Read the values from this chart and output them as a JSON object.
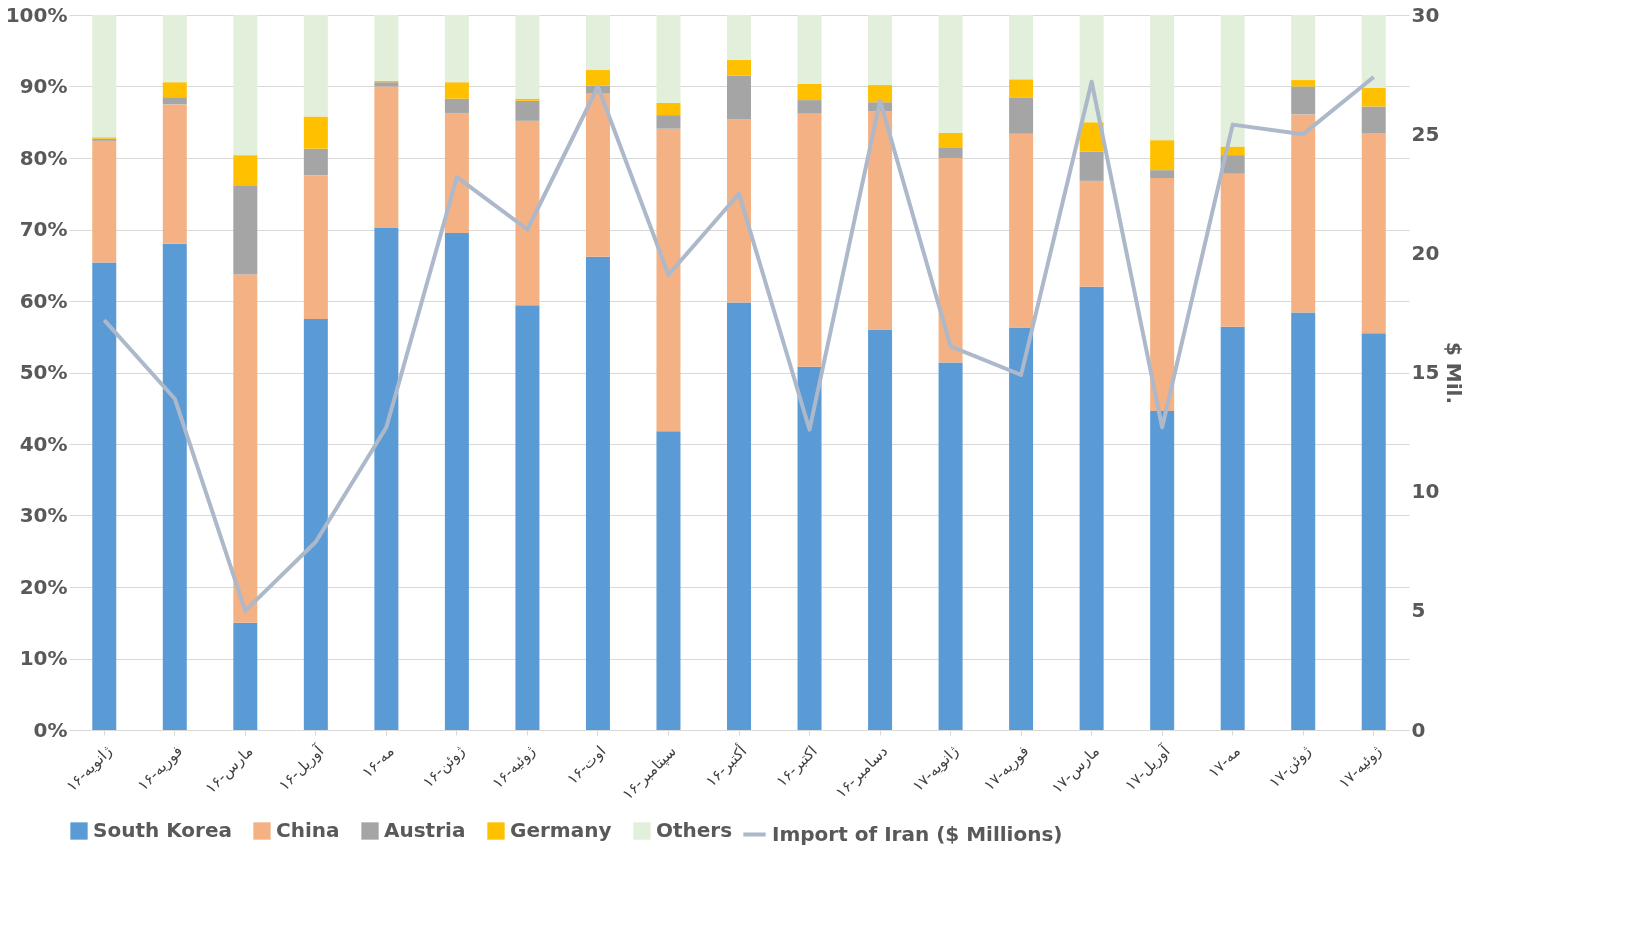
{
  "chart_data": {
    "type": "bar",
    "stacked": true,
    "categories": [
      "ژانویه-۱۶",
      "فوریه-۱۶",
      "مارس-۱۶",
      "آوریل-۱۶",
      "مه-۱۶",
      "ژوئن-۱۶",
      "ژوئیه-۱۶",
      "اوت-۱۶",
      "سپتامبر-۱۶",
      "أکتبر-۱۶",
      "اکتبر-۱۶",
      "دسامبر-۱۶",
      "ژانویه-۱۷",
      "فوریه-۱۷",
      "مارس-۱۷",
      "آوریل-۱۷",
      "مه-۱۷",
      "ژوئن-۱۷",
      "ژوئیه-۱۷"
    ],
    "series": [
      {
        "name": "South Korea",
        "color": "#5b9bd5",
        "values": [
          65.4,
          68,
          15,
          57.5,
          70.2,
          69.5,
          59.4,
          66.2,
          41.8,
          59.8,
          50.8,
          56,
          51.4,
          56.3,
          62,
          44.6,
          56.4,
          58.4,
          55.5
        ]
      },
      {
        "name": "China",
        "color": "#f4b183",
        "values": [
          17.0,
          19.5,
          48.7,
          20.1,
          19.8,
          16.8,
          25.8,
          22.8,
          42.3,
          25.6,
          35.4,
          30.5,
          28.6,
          27.1,
          14.8,
          32.6,
          21.4,
          27.7,
          28
        ]
      },
      {
        "name": "Austria",
        "color": "#a5a5a5",
        "values": [
          0.3,
          1.0,
          12.5,
          3.7,
          0.6,
          2.0,
          2.8,
          1.1,
          1.9,
          6.1,
          1.9,
          1.3,
          1.5,
          5.0,
          4.1,
          1.1,
          2.6,
          3.9,
          3.7
        ]
      },
      {
        "name": "Germany",
        "color": "#ffc000",
        "values": [
          0.2,
          2.1,
          4.2,
          4.5,
          0.2,
          2.3,
          0.3,
          2.2,
          1.7,
          2.2,
          2.3,
          2.4,
          2.0,
          2.6,
          4.1,
          4.2,
          1.2,
          0.9,
          2.6
        ]
      },
      {
        "name": "Others",
        "color": "#e2efda",
        "values": [
          17.1,
          9.4,
          19.6,
          14.2,
          9.2,
          9.4,
          11.7,
          7.7,
          12.3,
          6.3,
          9.6,
          9.8,
          16.5,
          9.0,
          15.0,
          17.5,
          18.4,
          9.1,
          10.2
        ]
      },
      {
        "name": "Import of Iran ($ Millions)",
        "type": "line",
        "axis": "y2",
        "color": "#adb9ca",
        "values": [
          17.2,
          13.9,
          5.0,
          7.9,
          12.7,
          23.2,
          21.0,
          27.0,
          19.1,
          22.5,
          12.6,
          26.4,
          16.1,
          14.9,
          27.2,
          12.7,
          25.4,
          25.0,
          27.4
        ]
      }
    ],
    "ylim": [
      0,
      100
    ],
    "yticks": [
      {
        "value": 0,
        "label": "0%"
      },
      {
        "value": 10,
        "label": "10%"
      },
      {
        "value": 20,
        "label": "20%"
      },
      {
        "value": 30,
        "label": "30%"
      },
      {
        "value": 40,
        "label": "40%"
      },
      {
        "value": 50,
        "label": "50%"
      },
      {
        "value": 60,
        "label": "60%"
      },
      {
        "value": 70,
        "label": "70%"
      },
      {
        "value": 80,
        "label": "80%"
      },
      {
        "value": 90,
        "label": "90%"
      },
      {
        "value": 100,
        "label": "100%"
      }
    ],
    "y2lim": [
      0,
      30
    ],
    "y2ticks": [
      0,
      5,
      10,
      15,
      20,
      25,
      30
    ],
    "y2label": "$ Mil.",
    "grid": "y",
    "legend": "bottom",
    "marker": "none",
    "line_style": "solid"
  }
}
